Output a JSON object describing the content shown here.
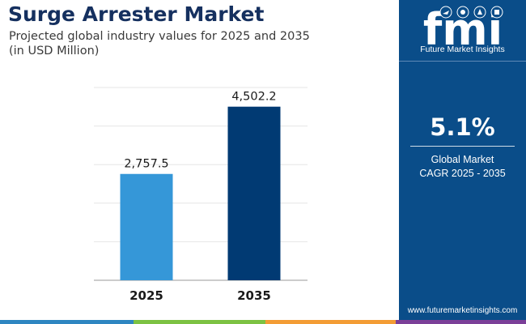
{
  "header": {
    "title": "Surge Arrester Market",
    "subtitle_line1": "Projected global industry values for 2025 and 2035",
    "subtitle_line2": "(in USD Million)"
  },
  "chart_data": {
    "type": "bar",
    "categories": [
      "2025",
      "2035"
    ],
    "values": [
      2757.5,
      4502.2
    ],
    "value_labels": [
      "2,757.5",
      "4,502.2"
    ],
    "bar_colors": [
      "#3597d8",
      "#013a73"
    ],
    "ylim": [
      0,
      5000
    ],
    "grid": true,
    "xlabel": "",
    "ylabel": ""
  },
  "sidebar": {
    "brand_name": "Future Market Insights",
    "logo_text": "fmi",
    "cagr_value": "5.1%",
    "cagr_label_line1": "Global Market",
    "cagr_label_line2": "CAGR 2025 - 2035",
    "website": "www.futuremarketinsights.com",
    "background_color": "#0a4d89"
  },
  "colors": {
    "title": "#15305f",
    "strip": [
      "#2e86c1",
      "#7cc242",
      "#f39c34",
      "#7b3f98"
    ]
  }
}
